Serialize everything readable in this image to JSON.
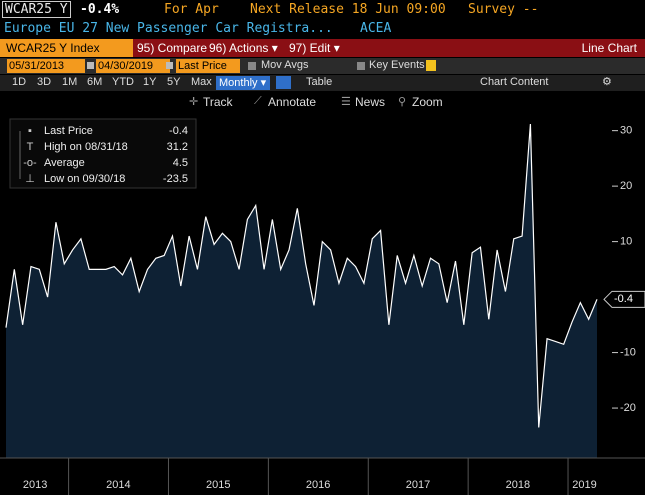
{
  "header": {
    "ticker": "WCAR25 Y",
    "change": "-0.4%",
    "period": "For Apr",
    "next_release": "Next Release 18 Jun 09:00",
    "survey": "Survey --",
    "description": "Europe EU 27 New Passenger Car Registra...",
    "source": "ACEA"
  },
  "toolbar": {
    "security": "WCAR25 Y Index",
    "buttons": [
      "95) Compare",
      "96) Actions ▾",
      "97) Edit ▾"
    ],
    "view": "Line Chart",
    "start_date": "05/31/2013",
    "end_date": "04/30/2019",
    "field": "Last Price",
    "mov_avgs": "Mov Avgs",
    "key_events": "Key Events",
    "ranges": [
      "1D",
      "3D",
      "1M",
      "6M",
      "YTD",
      "1Y",
      "5Y",
      "Max"
    ],
    "frequency": "Monthly ▾",
    "table": "Table",
    "chart_content": "Chart Content",
    "tools": [
      "Track",
      "Annotate",
      "News",
      "Zoom"
    ]
  },
  "chart_data": {
    "type": "line",
    "series": [
      {
        "name": "Last Price",
        "color": "#ffffff",
        "fill": "#0e2134",
        "values": [
          -5.5,
          5,
          -5,
          5.5,
          5,
          0,
          13.5,
          6,
          8.5,
          10.5,
          5,
          5,
          5,
          5.5,
          4,
          7,
          1,
          5,
          7,
          7.5,
          11,
          2,
          11,
          5,
          14.5,
          9.5,
          11.5,
          10,
          5,
          14,
          16.5,
          5,
          14,
          5,
          8.5,
          16,
          6,
          -1.5,
          10,
          8.5,
          2.5,
          7,
          5.5,
          2.5,
          10.5,
          12,
          -5,
          7.5,
          2.5,
          7.5,
          2,
          7,
          6,
          -1,
          6.5,
          -5,
          8,
          9,
          -4,
          8.5,
          1,
          10.5,
          11,
          31.2,
          -23.5,
          -7.5,
          -8,
          -8.5,
          -4.5,
          -1,
          -4,
          -0.4
        ]
      }
    ],
    "high_label": "High on 08/31/18",
    "average_label": "Average",
    "average": 4.5,
    "low_label": "Low on 09/30/18",
    "x_labels": [
      "2013",
      "2014",
      "2015",
      "2016",
      "2017",
      "2018",
      "2019"
    ],
    "ylim": [
      -29,
      33
    ],
    "yticks": [
      -20,
      -10,
      10,
      20,
      30
    ],
    "axis_side": "right"
  }
}
